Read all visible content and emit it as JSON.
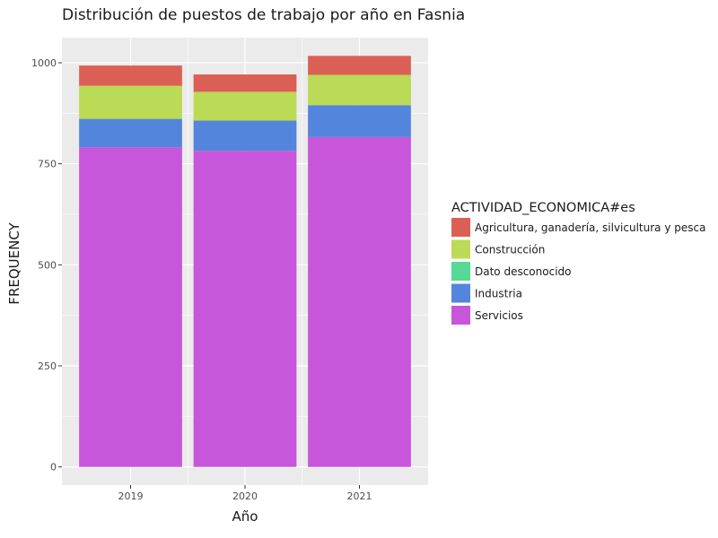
{
  "chart_data": {
    "type": "bar",
    "stacked": true,
    "title": "Distribución de puestos de trabajo por año en Fasnia",
    "xlabel": "Año",
    "ylabel": "FREQUENCY",
    "categories": [
      "2019",
      "2020",
      "2021"
    ],
    "ylim": [
      -45,
      1062
    ],
    "yticks": [
      0,
      250,
      500,
      750,
      1000
    ],
    "grid": true,
    "legend": {
      "title": "ACTIVIDAD_ECONOMICA#es",
      "position": "right"
    },
    "series": [
      {
        "name": "Servicios",
        "color": "#c756da",
        "values": [
          791,
          782,
          816
        ]
      },
      {
        "name": "Industria",
        "color": "#5485dc",
        "values": [
          70,
          75,
          79
        ]
      },
      {
        "name": "Dato desconocido",
        "color": "#56d994",
        "values": [
          0,
          0,
          0
        ]
      },
      {
        "name": "Construcción",
        "color": "#bbda55",
        "values": [
          82,
          71,
          75
        ]
      },
      {
        "name": "Agricultura, ganadería, silvicultura y pesca",
        "color": "#dc5f55",
        "values": [
          50,
          43,
          47
        ]
      }
    ],
    "legend_order": [
      "Agricultura, ganadería, silvicultura y pesca",
      "Construcción",
      "Dato desconocido",
      "Industria",
      "Servicios"
    ]
  }
}
